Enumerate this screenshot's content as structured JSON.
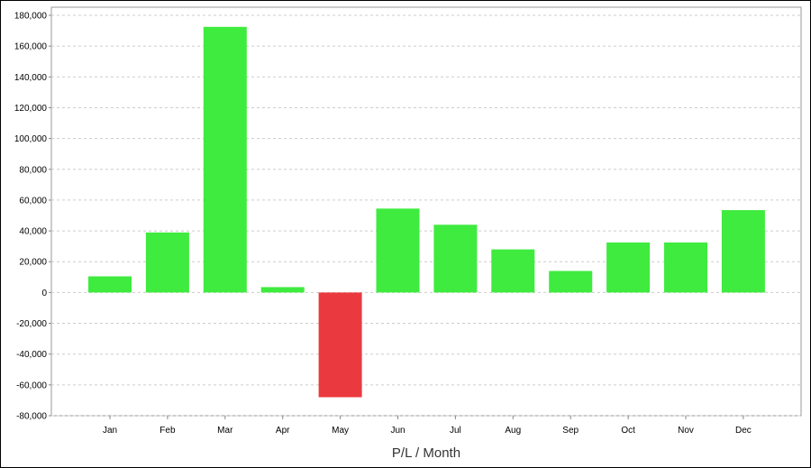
{
  "chart_data": {
    "type": "bar",
    "title": "",
    "xlabel": "P/L / Month",
    "ylabel": "",
    "categories": [
      "Jan",
      "Feb",
      "Mar",
      "Apr",
      "May",
      "Jun",
      "Jul",
      "Aug",
      "Sep",
      "Oct",
      "Nov",
      "Dec"
    ],
    "values": [
      10500,
      39000,
      172500,
      3500,
      -68000,
      54500,
      44000,
      28000,
      14000,
      32500,
      32500,
      53500
    ],
    "ylim": [
      -80000,
      180000
    ],
    "yticks": [
      -80000,
      -60000,
      -40000,
      -20000,
      0,
      20000,
      40000,
      60000,
      80000,
      100000,
      120000,
      140000,
      160000,
      180000
    ],
    "ytick_labels": [
      "-80,000",
      "-60,000",
      "-40,000",
      "-20,000",
      "0",
      "20,000",
      "40,000",
      "60,000",
      "80,000",
      "100,000",
      "120,000",
      "140,000",
      "160,000",
      "180,000"
    ],
    "grid": true,
    "colors": {
      "positive": "#3feb3f",
      "negative": "#eb3a3f",
      "grid": "#cccccc",
      "axis": "#888888"
    }
  }
}
